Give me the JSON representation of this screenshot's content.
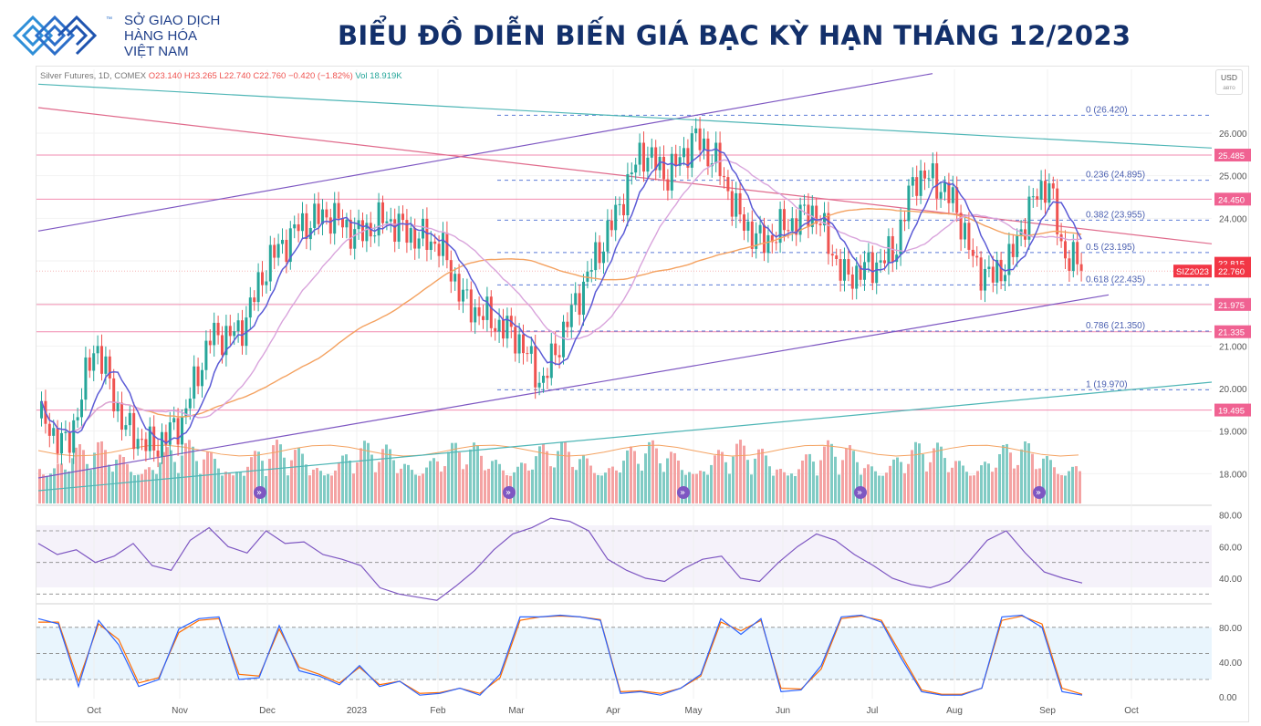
{
  "header": {
    "logo_tm": "™",
    "logo_line1": "SỞ GIAO DỊCH",
    "logo_line2": "HÀNG HÓA",
    "logo_line3": "VIỆT NAM",
    "title": "BIỂU ĐỒ DIỄN BIẾN GIÁ BẠC KỲ HẠN THÁNG 12/2023"
  },
  "info_bar": {
    "symbol": "Silver Futures, 1D, COMEX",
    "ohlc": "O23.140  H23.265  L22.740  C22.760  −0.420 (−1.82%)",
    "volume": "Vol 18.919K"
  },
  "currency": {
    "label": "USD",
    "sub": "авто"
  },
  "colors": {
    "up": "#26a69a",
    "down": "#ef5350",
    "ma_fast": "#5b5bd6",
    "ma_mid": "#d9a4dc",
    "ma_slow": "#f4a261",
    "fib": "#5b7bd6",
    "trend_purple": "#7e57c2",
    "trend_teal": "#4fb6b6",
    "trend_pink": "#e06b8c",
    "level_pink": "#f28bb0",
    "rsi": "#7e57c2",
    "stoch_k": "#2962ff",
    "stoch_d": "#ff6d00",
    "label_red": "#f23645",
    "label_pink": "#f06292"
  },
  "chart_data": [
    {
      "type": "candlestick",
      "title": "",
      "price_axis_ticks": [
        "26.000",
        "25.000",
        "24.000",
        "23.000",
        "22.000",
        "21.000",
        "20.000",
        "19.000",
        "18.000"
      ],
      "time_axis_ticks": [
        "Oct",
        "Nov",
        "Dec",
        "2023",
        "Feb",
        "Mar",
        "Apr",
        "May",
        "Jun",
        "Jul",
        "Aug",
        "Sep",
        "Oct"
      ],
      "ylim": [
        17.3,
        27.5
      ],
      "anchors": [
        {
          "x": "Sep 2022",
          "y": 19.3
        },
        {
          "x": "Sep 2022",
          "y": 18.6
        },
        {
          "x": "Oct 2022",
          "y": 21.1
        },
        {
          "x": "Oct 2022",
          "y": 19.1
        },
        {
          "x": "Oct 2022",
          "y": 18.6
        },
        {
          "x": "Nov 2022",
          "y": 19.2
        },
        {
          "x": "Nov 2022",
          "y": 21.2
        },
        {
          "x": "Nov 2022",
          "y": 21.3
        },
        {
          "x": "Dec 2022",
          "y": 23.0
        },
        {
          "x": "Dec 2022",
          "y": 23.8
        },
        {
          "x": "Dec 2022",
          "y": 24.1
        },
        {
          "x": "Jan 2023",
          "y": 23.6
        },
        {
          "x": "Jan 2023",
          "y": 24.0
        },
        {
          "x": "Jan 2023",
          "y": 23.6
        },
        {
          "x": "Feb 2023",
          "y": 23.4
        },
        {
          "x": "Feb 2023",
          "y": 22.0
        },
        {
          "x": "Feb 2023",
          "y": 21.6
        },
        {
          "x": "Mar 2023",
          "y": 21.2
        },
        {
          "x": "Mar 2023",
          "y": 20.1
        },
        {
          "x": "Mar 2023",
          "y": 21.5
        },
        {
          "x": "Mar 2023",
          "y": 22.8
        },
        {
          "x": "Apr 2023",
          "y": 24.0
        },
        {
          "x": "Apr 2023",
          "y": 25.6
        },
        {
          "x": "Apr 2023",
          "y": 25.0
        },
        {
          "x": "May 2023",
          "y": 25.9
        },
        {
          "x": "May 2023",
          "y": 25.3
        },
        {
          "x": "May 2023",
          "y": 24.0
        },
        {
          "x": "May 2023",
          "y": 23.4
        },
        {
          "x": "Jun 2023",
          "y": 23.8
        },
        {
          "x": "Jun 2023",
          "y": 24.2
        },
        {
          "x": "Jun 2023",
          "y": 22.6
        },
        {
          "x": "Jul 2023",
          "y": 22.9
        },
        {
          "x": "Jul 2023",
          "y": 23.2
        },
        {
          "x": "Jul 2023",
          "y": 25.0
        },
        {
          "x": "Jul 2023",
          "y": 24.9
        },
        {
          "x": "Aug 2023",
          "y": 24.3
        },
        {
          "x": "Aug 2023",
          "y": 22.9
        },
        {
          "x": "Aug 2023",
          "y": 22.6
        },
        {
          "x": "Aug 2023",
          "y": 23.1
        },
        {
          "x": "Aug 2023",
          "y": 24.3
        },
        {
          "x": "Sep 2023",
          "y": 24.9
        },
        {
          "x": "Sep 2023",
          "y": 23.3
        },
        {
          "x": "Sep 2023",
          "y": 22.76
        }
      ],
      "fibonacci": [
        {
          "level": "0",
          "value": 26.42,
          "label": "0 (26.420)"
        },
        {
          "level": "0.236",
          "value": 24.895,
          "label": "0.236 (24.895)"
        },
        {
          "level": "0.382",
          "value": 23.955,
          "label": "0.382 (23.955)"
        },
        {
          "level": "0.5",
          "value": 23.195,
          "label": "0.5 (23.195)"
        },
        {
          "level": "0.618",
          "value": 22.435,
          "label": "0.618 (22.435)"
        },
        {
          "level": "0.786",
          "value": 21.35,
          "label": "0.786 (21.350)"
        },
        {
          "level": "1",
          "value": 19.97,
          "label": "1 (19.970)"
        }
      ],
      "horizontal_levels": [
        25.485,
        24.45,
        21.975,
        21.335,
        19.495
      ],
      "price_labels": [
        {
          "text": "25.485",
          "value": 25.485,
          "style": "pink"
        },
        {
          "text": "24.450",
          "value": 24.45,
          "style": "pink"
        },
        {
          "text": "22.815",
          "value": 22.815,
          "style": "red"
        },
        {
          "text": "SIZ2023",
          "value": 22.76,
          "style": "red"
        },
        {
          "text": "22.760",
          "value": 22.76,
          "style": "red"
        },
        {
          "text": "21.975",
          "value": 21.975,
          "style": "pink"
        },
        {
          "text": "21.335",
          "value": 21.335,
          "style": "pink"
        },
        {
          "text": "19.495",
          "value": 19.495,
          "style": "pink"
        }
      ],
      "trendlines": [
        {
          "name": "purple-upper",
          "from": {
            "x": "Sep 2022",
            "y": 23.7
          },
          "to": {
            "x": "May 2023",
            "y": 27.4
          }
        },
        {
          "name": "purple-lower",
          "from": {
            "x": "Sep 2022",
            "y": 17.9
          },
          "to": {
            "x": "Sep 2023",
            "y": 22.2
          }
        },
        {
          "name": "teal-upper",
          "from": {
            "x": "Sep 2022",
            "y": 27.15
          },
          "to": {
            "x": "Oct 2023",
            "y": 25.65
          }
        },
        {
          "name": "teal-lower",
          "from": {
            "x": "Sep 2022",
            "y": 17.6
          },
          "to": {
            "x": "Oct 2023",
            "y": 20.15
          }
        },
        {
          "name": "pink-downtrend",
          "from": {
            "x": "Sep 2022",
            "y": 26.6
          },
          "to": {
            "x": "Oct 2023",
            "y": 23.4
          }
        }
      ]
    },
    {
      "type": "line",
      "title": "",
      "axis_ticks": [
        "80.00",
        "60.00",
        "40.00"
      ],
      "ylim": [
        25,
        85
      ],
      "bands": [
        70,
        50,
        30
      ],
      "values": [
        62,
        55,
        58,
        50,
        54,
        62,
        48,
        45,
        64,
        72,
        60,
        56,
        70,
        62,
        63,
        55,
        52,
        48,
        34,
        30,
        28,
        26,
        35,
        45,
        58,
        68,
        72,
        78,
        76,
        70,
        52,
        45,
        40,
        38,
        46,
        52,
        54,
        40,
        38,
        50,
        60,
        68,
        64,
        55,
        48,
        40,
        36,
        34,
        38,
        50,
        64,
        70,
        56,
        44,
        40,
        37
      ]
    },
    {
      "type": "line",
      "title": "",
      "axis_ticks": [
        "80.00",
        "40.00",
        "0.00"
      ],
      "ylim": [
        -2,
        105
      ],
      "bands": [
        80,
        50,
        20
      ],
      "series": [
        {
          "name": "",
          "values": [
            90,
            84,
            12,
            88,
            60,
            12,
            20,
            78,
            90,
            92,
            20,
            22,
            82,
            30,
            24,
            14,
            36,
            12,
            18,
            2,
            4,
            10,
            2,
            26,
            92,
            92,
            94,
            92,
            88,
            4,
            6,
            2,
            10,
            26,
            90,
            72,
            90,
            6,
            8,
            36,
            92,
            94,
            86,
            44,
            6,
            2,
            2,
            10,
            92,
            94,
            80,
            6,
            2
          ]
        },
        {
          "name": "",
          "values": [
            86,
            86,
            18,
            84,
            66,
            16,
            22,
            74,
            88,
            90,
            26,
            24,
            78,
            34,
            26,
            16,
            34,
            14,
            18,
            4,
            5,
            10,
            4,
            22,
            88,
            92,
            93,
            92,
            89,
            6,
            7,
            4,
            10,
            24,
            86,
            76,
            88,
            10,
            9,
            32,
            90,
            93,
            88,
            48,
            8,
            3,
            3,
            10,
            88,
            93,
            84,
            10,
            3
          ]
        }
      ]
    }
  ]
}
